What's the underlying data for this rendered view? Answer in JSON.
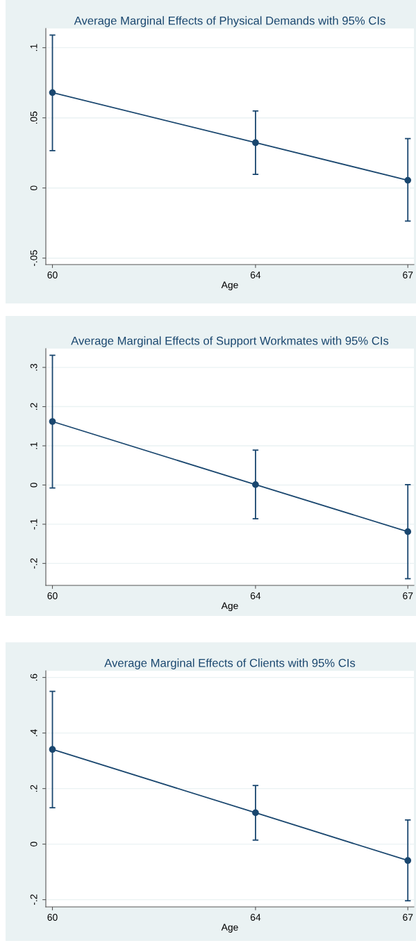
{
  "chart_data": [
    {
      "type": "line",
      "title": "Average Marginal Effects of Physical Demands with 95% CIs",
      "xlabel": "Age",
      "x": [
        60,
        64,
        67
      ],
      "xlim": [
        59.87,
        67.12
      ],
      "xticks": [
        60,
        64,
        67
      ],
      "ylim": [
        -0.0546,
        0.1137
      ],
      "yticks": [
        {
          "value": -0.05,
          "label": "-.05"
        },
        0,
        {
          "value": 0.05,
          "label": ".05"
        },
        {
          "value": 0.1,
          "label": ".1"
        }
      ],
      "series": [
        {
          "color": "#1a476f",
          "values": [
            0.068,
            0.0323,
            0.0055
          ],
          "errors": [
            [
              0.0266,
              0.109
            ],
            [
              0.0097,
              0.0549
            ],
            [
              -0.0236,
              0.0352
            ]
          ]
        }
      ],
      "grid": "y",
      "marker": "circle",
      "line_style": "solid"
    },
    {
      "type": "line",
      "title": "Average Marginal Effects of Support Workmates with 95% CIs",
      "xlabel": "Age",
      "x": [
        60,
        64,
        67
      ],
      "xlim": [
        59.87,
        67.12
      ],
      "xticks": [
        60,
        64,
        67
      ],
      "ylim": [
        -0.256,
        0.348
      ],
      "yticks": [
        {
          "value": -0.2,
          "label": "-.2"
        },
        {
          "value": -0.1,
          "label": "-.1"
        },
        0,
        {
          "value": 0.1,
          "label": ".1"
        },
        {
          "value": 0.2,
          "label": ".2"
        },
        {
          "value": 0.3,
          "label": ".3"
        }
      ],
      "series": [
        {
          "color": "#1a476f",
          "values": [
            0.162,
            0.001,
            -0.119
          ],
          "errors": [
            [
              -0.0075,
              0.331
            ],
            [
              -0.086,
              0.089
            ],
            [
              -0.239,
              0.001
            ]
          ]
        }
      ],
      "grid": "y",
      "marker": "circle",
      "line_style": "solid"
    },
    {
      "type": "line",
      "title": "Average Marginal Effects of Clients with 95% CIs",
      "xlabel": "Age",
      "x": [
        60,
        64,
        67
      ],
      "xlim": [
        59.87,
        67.12
      ],
      "xticks": [
        60,
        64,
        67
      ],
      "ylim": [
        -0.226,
        0.624
      ],
      "yticks": [
        {
          "value": -0.2,
          "label": "-.2"
        },
        0,
        {
          "value": 0.2,
          "label": ".2"
        },
        {
          "value": 0.4,
          "label": ".4"
        },
        {
          "value": 0.6,
          "label": ".6"
        }
      ],
      "series": [
        {
          "color": "#1a476f",
          "values": [
            0.341,
            0.113,
            -0.059
          ],
          "errors": [
            [
              0.131,
              0.55
            ],
            [
              0.0145,
              0.211
            ],
            [
              -0.204,
              0.087
            ]
          ]
        }
      ],
      "grid": "y",
      "marker": "circle",
      "line_style": "solid"
    }
  ]
}
